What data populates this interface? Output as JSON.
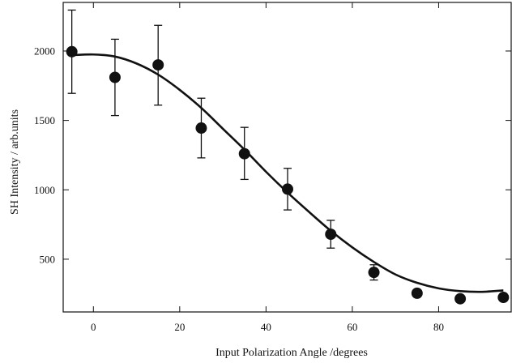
{
  "chart_data": {
    "type": "scatter",
    "title": "",
    "xlabel": "Input Polarization Angle  /degrees",
    "ylabel": "SH Intensity   / arb.units",
    "xlim": [
      -7,
      97
    ],
    "ylim": [
      120,
      2350
    ],
    "xticks": [
      0,
      20,
      40,
      60,
      80
    ],
    "yticks": [
      500,
      1000,
      1500,
      2000
    ],
    "grid": false,
    "legend": "none",
    "colors": {
      "points": "#111111",
      "fit": "#111111",
      "axes": "#111111"
    },
    "series": [
      {
        "kind": "points-with-error-bars",
        "x": [
          -5,
          5,
          15,
          25,
          35,
          45,
          55,
          65,
          75,
          85,
          95
        ],
        "y": [
          1995,
          1810,
          1900,
          1445,
          1260,
          1005,
          680,
          405,
          255,
          215,
          225
        ],
        "yerr_low": [
          300,
          275,
          290,
          215,
          185,
          150,
          100,
          55,
          0,
          0,
          0
        ],
        "yerr_high": [
          300,
          275,
          285,
          215,
          190,
          150,
          100,
          55,
          0,
          0,
          0
        ]
      },
      {
        "kind": "fit-curve",
        "x": [
          -5,
          0,
          5,
          10,
          15,
          20,
          25,
          30,
          35,
          40,
          45,
          50,
          55,
          60,
          65,
          70,
          75,
          80,
          85,
          90,
          95
        ],
        "y": [
          1970,
          1975,
          1960,
          1910,
          1830,
          1720,
          1590,
          1440,
          1290,
          1130,
          980,
          840,
          705,
          585,
          480,
          390,
          330,
          290,
          270,
          265,
          275
        ]
      }
    ]
  }
}
